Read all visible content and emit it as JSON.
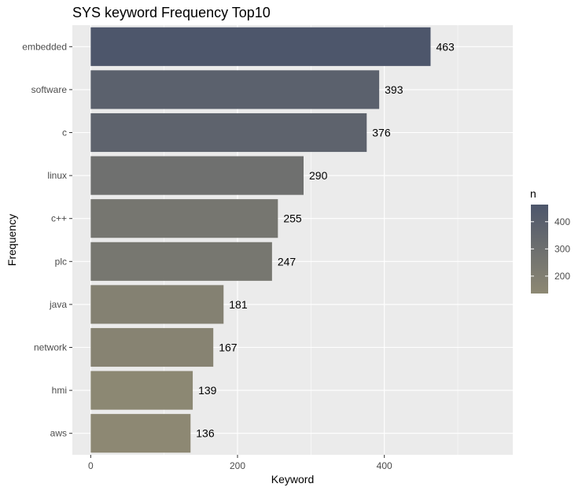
{
  "chart_data": {
    "type": "bar",
    "orientation": "horizontal",
    "title": "SYS keyword Frequency Top10",
    "xlabel": "Keyword",
    "ylabel": "Frequency",
    "categories": [
      "embedded",
      "software",
      "c",
      "linux",
      "c++",
      "plc",
      "java",
      "network",
      "hmi",
      "aws"
    ],
    "values": [
      463,
      393,
      376,
      290,
      255,
      247,
      181,
      167,
      139,
      136
    ],
    "xlim": [
      -25,
      575
    ],
    "x_ticks": [
      0,
      200,
      400
    ],
    "grid": true,
    "background": "#ebebeb",
    "legend": {
      "title": "n",
      "placement": "right",
      "ticks": [
        200,
        300,
        400
      ],
      "color_low": "#8d8873",
      "color_high": "#4d566b"
    }
  }
}
